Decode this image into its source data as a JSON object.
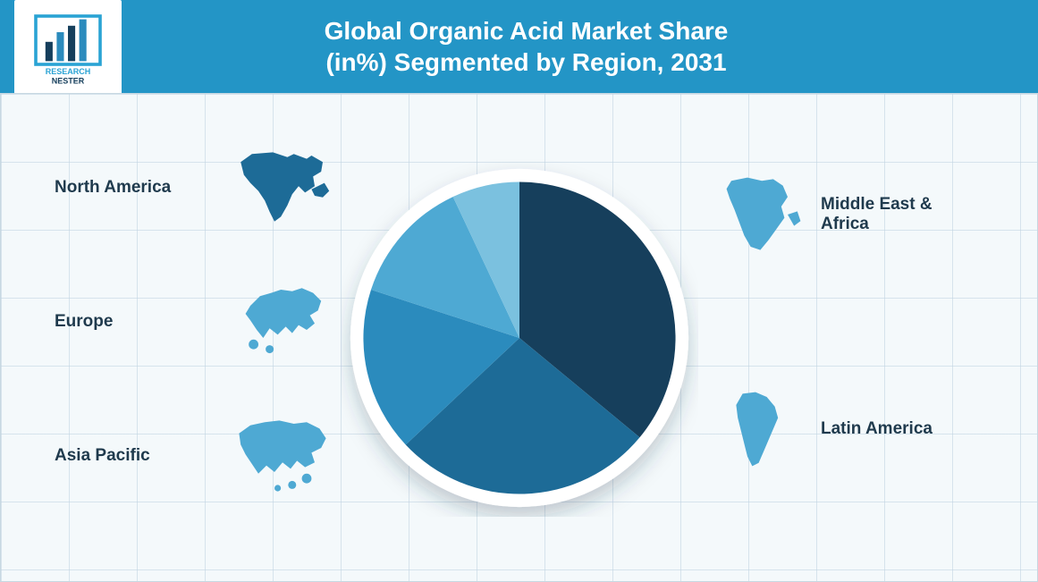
{
  "header": {
    "title_line1": "Global Organic Acid Market Share",
    "title_line2": "(in%) Segmented by Region, 2031",
    "background_color": "#2395c6",
    "text_color": "#ffffff",
    "title_fontsize": 28,
    "logo_brand_top": "RESEARCH",
    "logo_brand_bottom": "NESTER"
  },
  "chart": {
    "type": "pie",
    "background_color": "#f4f9fb",
    "grid_color": "#c7d8e2",
    "outer_ring_color": "#ffffff",
    "outer_ring_width": 10,
    "shadow_color": "rgba(30,60,80,0.25)",
    "slices": [
      {
        "region": "Middle East & Africa",
        "value": 36,
        "color": "#163f5c"
      },
      {
        "region": "Asia Pacific",
        "value": 27,
        "color": "#1d6b97"
      },
      {
        "region": "Europe",
        "value": 17,
        "color": "#2b8bbd"
      },
      {
        "region": "North America",
        "value": 13,
        "color": "#4ea9d3"
      },
      {
        "region": "Latin America",
        "value": 7,
        "color": "#7bc1df"
      }
    ],
    "start_angle_deg": -90
  },
  "regions": {
    "left": [
      {
        "key": "na",
        "label": "North America",
        "icon_color": "#1d6b97"
      },
      {
        "key": "eu",
        "label": "Europe",
        "icon_color": "#4ea9d3"
      },
      {
        "key": "ap",
        "label": "Asia Pacific",
        "icon_color": "#4ea9d3"
      }
    ],
    "right": [
      {
        "key": "mea",
        "label": "Middle East & Africa",
        "icon_color": "#4ea9d3"
      },
      {
        "key": "la",
        "label": "Latin America",
        "icon_color": "#4ea9d3"
      }
    ],
    "label_color": "#1f3a4d",
    "label_fontsize": 19
  }
}
